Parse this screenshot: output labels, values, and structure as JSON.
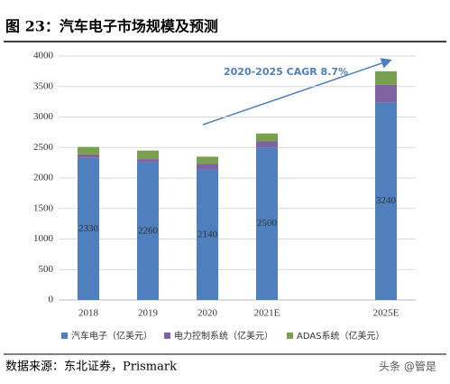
{
  "chart_data": {
    "type": "bar",
    "stacked": true,
    "title": "图 23：汽车电子市场规模及预测",
    "annotation": "2020-2025 CAGR 8.7%",
    "source": "数据来源：东北证券，Prismark",
    "watermark": "头条 @管是",
    "categories": [
      "2018",
      "2019",
      "2020",
      "2021E",
      null,
      "2025E"
    ],
    "series": [
      {
        "name": "汽车电子（亿美元）",
        "color": "#4f7fbd",
        "values": [
          2330,
          2260,
          2140,
          2500,
          null,
          3240
        ]
      },
      {
        "name": "电力控制系统（亿美元）",
        "color": "#8064a2",
        "values": [
          60,
          50,
          90,
          100,
          null,
          290
        ]
      },
      {
        "name": "ADAS系统（亿美元）",
        "color": "#79a04e",
        "values": [
          120,
          140,
          120,
          130,
          null,
          220
        ]
      }
    ],
    "ylim": [
      0,
      4000
    ],
    "yticks": [
      0,
      500,
      1000,
      1500,
      2000,
      2500,
      3000,
      3500,
      4000
    ],
    "grid": true
  }
}
